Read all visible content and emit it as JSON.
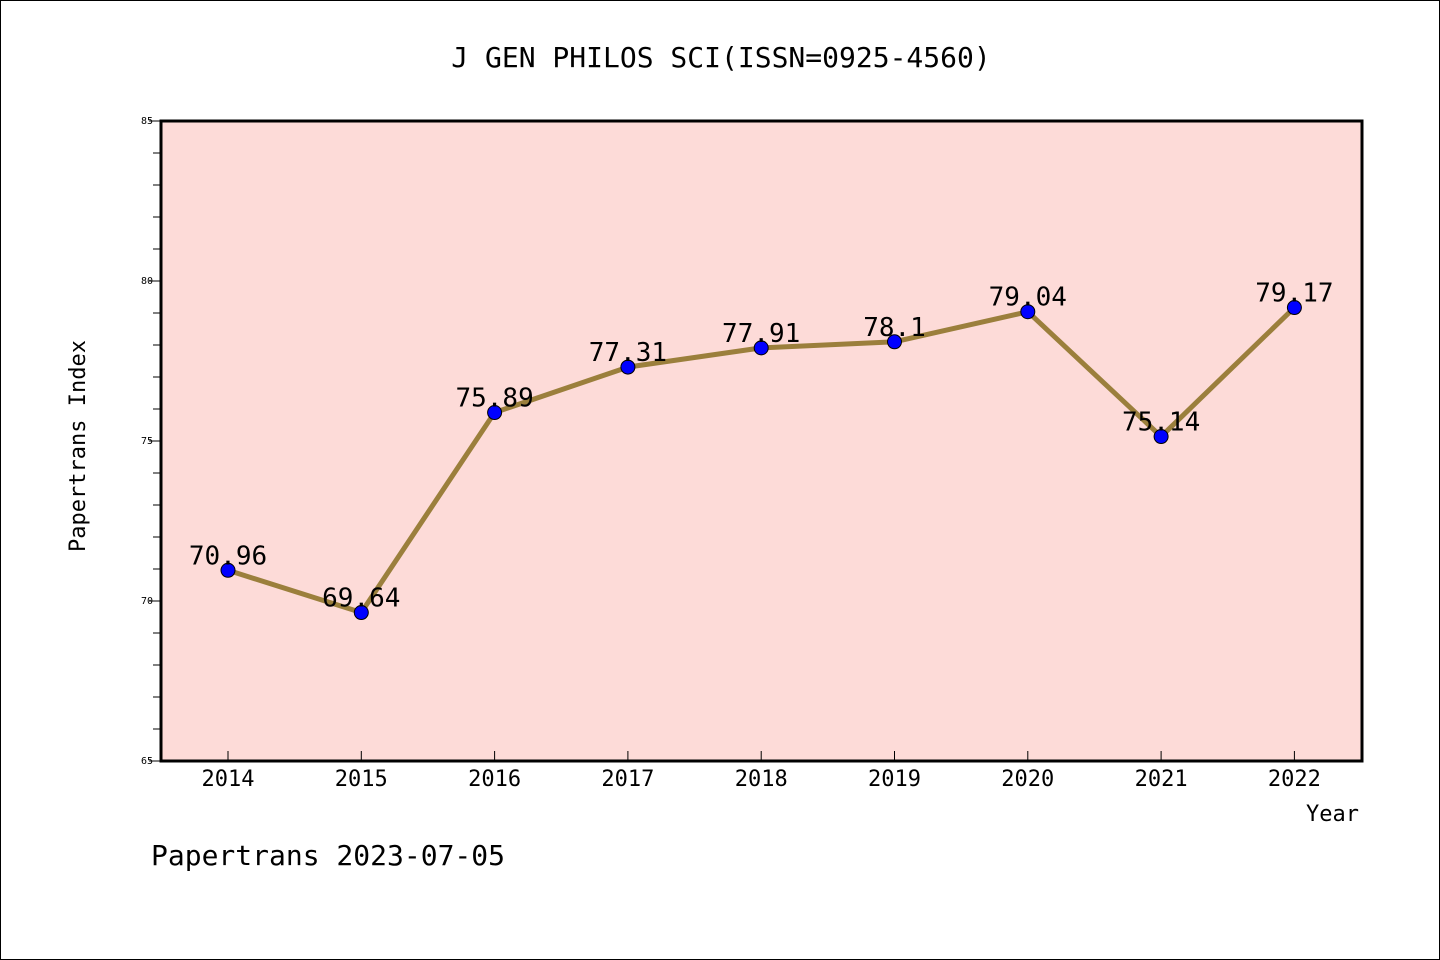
{
  "chart_data": {
    "type": "line",
    "title": "J GEN PHILOS SCI(ISSN=0925-4560)",
    "xlabel": "Year",
    "ylabel": "Papertrans Index",
    "categories": [
      "2014",
      "2015",
      "2016",
      "2017",
      "2018",
      "2019",
      "2020",
      "2021",
      "2022"
    ],
    "values": [
      70.96,
      69.64,
      75.89,
      77.31,
      77.91,
      78.1,
      79.04,
      75.14,
      79.17
    ],
    "data_labels": [
      "70.96",
      "69.64",
      "75.89",
      "77.31",
      "77.91",
      "78.1",
      "79.04",
      "75.14",
      "79.17"
    ],
    "ylim": [
      65,
      85
    ],
    "yticks": [
      65,
      70,
      75,
      80,
      85
    ],
    "grid": false,
    "colors": {
      "plot_background": "#fddbd8",
      "line": "#9b7f3c",
      "marker": "#0000ff"
    },
    "footer": "Papertrans 2023-07-05"
  }
}
